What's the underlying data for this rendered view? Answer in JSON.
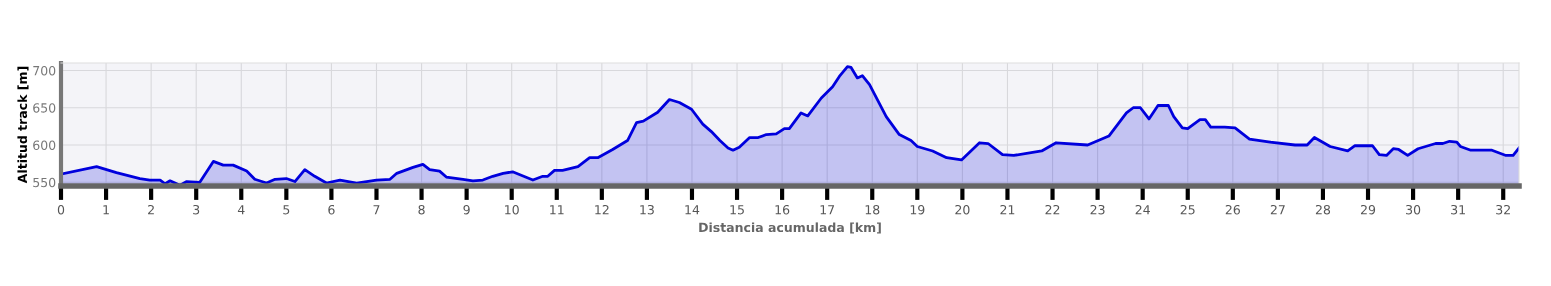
{
  "chart_data": {
    "type": "area",
    "xlabel": "Distancia acumulada [km]",
    "ylabel": "Altitud track [m]",
    "xlim": [
      0,
      32.35
    ],
    "ylim": [
      545,
      710
    ],
    "xticks": [
      0,
      1,
      2,
      3,
      4,
      5,
      6,
      7,
      8,
      9,
      10,
      11,
      12,
      13,
      14,
      15,
      16,
      17,
      18,
      19,
      20,
      21,
      22,
      23,
      24,
      25,
      26,
      27,
      28,
      29,
      30,
      31,
      32
    ],
    "yticks": [
      550,
      600,
      650,
      700
    ],
    "grid": true,
    "series": [
      {
        "color": "#0000dd",
        "x": [
          0,
          0.79,
          1.23,
          1.75,
          1.97,
          2.2,
          2.31,
          2.42,
          2.64,
          2.79,
          3.08,
          3.38,
          3.6,
          3.82,
          4.12,
          4.3,
          4.56,
          4.75,
          5.0,
          5.19,
          5.41,
          5.63,
          5.89,
          6.19,
          6.56,
          7.0,
          7.3,
          7.45,
          7.81,
          8.03,
          8.18,
          8.4,
          8.55,
          8.92,
          9.14,
          9.36,
          9.58,
          9.81,
          10.02,
          10.47,
          10.69,
          10.8,
          10.95,
          11.13,
          11.47,
          11.73,
          11.91,
          12.24,
          12.57,
          12.77,
          12.92,
          13.24,
          13.5,
          13.72,
          13.99,
          14.24,
          14.43,
          14.62,
          14.8,
          14.91,
          15.05,
          15.28,
          15.47,
          15.65,
          15.87,
          16.05,
          16.16,
          16.42,
          16.57,
          16.87,
          17.12,
          17.27,
          17.45,
          17.53,
          17.67,
          17.78,
          17.94,
          18.31,
          18.6,
          18.86,
          19.0,
          19.34,
          19.65,
          19.98,
          20.38,
          20.57,
          20.89,
          21.14,
          21.76,
          22.08,
          22.78,
          23.25,
          23.64,
          23.79,
          23.95,
          24.14,
          24.34,
          24.57,
          24.69,
          24.88,
          25.0,
          25.27,
          25.39,
          25.51,
          25.82,
          26.05,
          26.37,
          26.83,
          27.38,
          27.65,
          27.81,
          28.16,
          28.55,
          28.71,
          29.1,
          29.25,
          29.41,
          29.56,
          29.68,
          29.88,
          30.11,
          30.5,
          30.66,
          30.81,
          30.97,
          31.05,
          31.28,
          31.75,
          32.06,
          32.22,
          32.35
        ],
        "values": [
          561,
          571,
          563,
          555,
          553,
          553,
          548,
          552,
          546,
          551,
          550,
          578,
          573,
          573,
          565,
          554,
          549,
          554,
          555,
          551,
          567,
          558,
          549,
          553,
          549,
          553,
          554,
          562,
          570,
          574,
          567,
          565,
          557,
          554,
          552,
          553,
          558,
          562,
          564,
          553,
          558,
          558,
          566,
          566,
          571,
          583,
          583,
          594,
          606,
          630,
          632,
          644,
          661,
          657,
          648,
          628,
          618,
          606,
          596,
          593,
          597,
          610,
          610,
          614,
          615,
          622,
          622,
          643,
          639,
          663,
          678,
          692,
          705,
          704,
          690,
          693,
          681,
          638,
          614,
          606,
          598,
          592,
          583,
          580,
          603,
          602,
          587,
          586,
          592,
          603,
          600,
          612,
          643,
          650,
          650,
          635,
          653,
          653,
          638,
          623,
          622,
          634,
          634,
          624,
          624,
          623,
          608,
          604,
          600,
          600,
          610,
          598,
          592,
          599,
          599,
          587,
          586,
          595,
          594,
          586,
          595,
          602,
          602,
          605,
          604,
          598,
          593,
          593,
          586,
          586,
          596
        ]
      }
    ]
  }
}
